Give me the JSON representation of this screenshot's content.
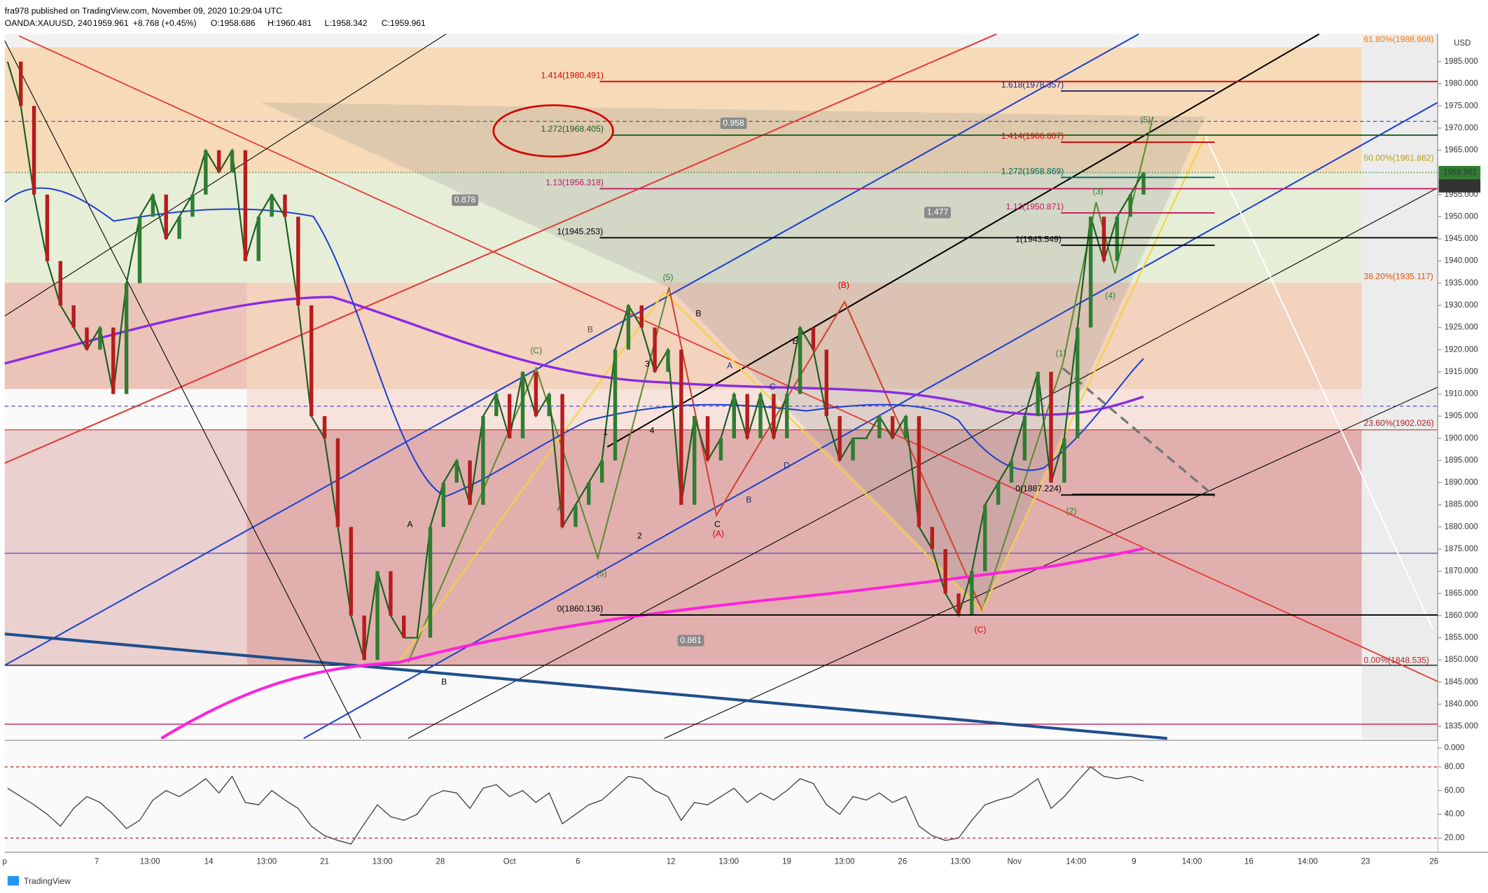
{
  "header": {
    "line1": "fra978 published on TradingView.com, November 09, 2020 10:29:04 UTC",
    "symbol": "OANDA:XAUUSD, 240",
    "last": "1959.961",
    "change": "+8.768 (+0.45%)",
    "open": "O:1958.686",
    "high": "H:1960.481",
    "low": "L:1958.342",
    "close": "C:1959.961"
  },
  "price_axis": {
    "currency": "USD",
    "ticks": [
      {
        "value": 1985,
        "label": "1985.000"
      },
      {
        "value": 1980,
        "label": "1980.000"
      },
      {
        "value": 1975,
        "label": "1975.000"
      },
      {
        "value": 1970,
        "label": "1970.000"
      },
      {
        "value": 1965,
        "label": "1965.000"
      },
      {
        "value": 1955,
        "label": "1955.000"
      },
      {
        "value": 1950,
        "label": "1950.000"
      },
      {
        "value": 1945,
        "label": "1945.000"
      },
      {
        "value": 1940,
        "label": "1940.000"
      },
      {
        "value": 1935,
        "label": "1935.000"
      },
      {
        "value": 1930,
        "label": "1930.000"
      },
      {
        "value": 1925,
        "label": "1925.000"
      },
      {
        "value": 1920,
        "label": "1920.000"
      },
      {
        "value": 1915,
        "label": "1915.000"
      },
      {
        "value": 1910,
        "label": "1910.000"
      },
      {
        "value": 1905,
        "label": "1905.000"
      },
      {
        "value": 1900,
        "label": "1900.000"
      },
      {
        "value": 1895,
        "label": "1895.000"
      },
      {
        "value": 1890,
        "label": "1890.000"
      },
      {
        "value": 1885,
        "label": "1885.000"
      },
      {
        "value": 1880,
        "label": "1880.000"
      },
      {
        "value": 1875,
        "label": "1875.000"
      },
      {
        "value": 1870,
        "label": "1870.000"
      },
      {
        "value": 1865,
        "label": "1865.000"
      },
      {
        "value": 1860,
        "label": "1860.000"
      },
      {
        "value": 1855,
        "label": "1855.000"
      },
      {
        "value": 1850,
        "label": "1850.000"
      },
      {
        "value": 1845,
        "label": "1845.000"
      },
      {
        "value": 1840,
        "label": "1840.000"
      },
      {
        "value": 1835,
        "label": "1835.000"
      }
    ],
    "price_tag": {
      "value": 1959.961,
      "label": "1959.961"
    },
    "countdown": "03:30:57"
  },
  "time_axis": [
    "p",
    "7",
    "13:00",
    "14",
    "13:00",
    "21",
    "13:00",
    "28",
    "Oct",
    "6",
    "12",
    "13:00",
    "19",
    "13:00",
    "26",
    "13:00",
    "Nov",
    "14:00",
    "9",
    "14:00",
    "16",
    "14:00",
    "23",
    "26"
  ],
  "closes": [
    1985,
    1975,
    1955,
    1940,
    1930,
    1925,
    1920,
    1925,
    1910,
    1935,
    1950,
    1955,
    1945,
    1950,
    1955,
    1965,
    1960,
    1965,
    1940,
    1950,
    1955,
    1950,
    1930,
    1905,
    1900,
    1880,
    1860,
    1850,
    1870,
    1860,
    1855,
    1855,
    1880,
    1890,
    1895,
    1885,
    1905,
    1910,
    1900,
    1915,
    1905,
    1910,
    1880,
    1885,
    1890,
    1895,
    1920,
    1930,
    1925,
    1915,
    1920,
    1885,
    1905,
    1895,
    1900,
    1910,
    1900,
    1910,
    1900,
    1910,
    1925,
    1920,
    1905,
    1895,
    1900,
    1900,
    1905,
    1900,
    1905,
    1880,
    1875,
    1865,
    1860,
    1870,
    1885,
    1890,
    1895,
    1905,
    1915,
    1890,
    1900,
    1925,
    1950,
    1940,
    1950,
    1955,
    1960
  ],
  "fib_labels": [
    {
      "text": "61.80%(1988.608)",
      "color": "#f57c00"
    },
    {
      "text": "1.414(1980.491)",
      "color": "#d50000"
    },
    {
      "text": "1.618(1978.357)",
      "color": "#1a237e"
    },
    {
      "text": "1.272(1968.405)",
      "color": "#1b5e20"
    },
    {
      "text": "1.414(1966.807)",
      "color": "#d50000"
    },
    {
      "text": "50.00%(1961.862)",
      "color": "#c0a000"
    },
    {
      "text": "1.272(1958.869)",
      "color": "#00695c"
    },
    {
      "text": "1.13(1956.318)",
      "color": "#c2185b"
    },
    {
      "text": "1.13(1950.871)",
      "color": "#c2185b"
    },
    {
      "text": "1(1945.253)",
      "color": "#000000"
    },
    {
      "text": "1(1943.549)",
      "color": "#000000"
    },
    {
      "text": "38.20%(1935.117)",
      "color": "#e65100"
    },
    {
      "text": "23.60%(1902.026)",
      "color": "#b71c1c"
    },
    {
      "text": "0(1887.224)",
      "color": "#000000"
    },
    {
      "text": "0(1860.136)",
      "color": "#000000"
    },
    {
      "text": "0.00%(1848.535)",
      "color": "#b71c1c"
    }
  ],
  "ratio_boxes": [
    "0.958",
    "0.878",
    "1.477",
    "0.861"
  ],
  "wave_labels": [
    "A",
    "B",
    "(C)",
    "B",
    "A",
    "1",
    "2",
    "(5)",
    "3",
    "4",
    "(5)",
    "B",
    "A",
    "C",
    "(A)",
    "B",
    "C",
    "D",
    "E",
    "(B)",
    "(C)",
    "(1)",
    "(2)",
    "(3)",
    "(4)",
    "(5)"
  ],
  "rsi": {
    "ticks": [
      {
        "value": 0,
        "label": "0.000"
      },
      {
        "value": 80,
        "label": "80.00"
      },
      {
        "value": 60,
        "label": "60.00"
      },
      {
        "value": 40,
        "label": "40.00"
      },
      {
        "value": 20,
        "label": "20.00"
      }
    ],
    "values": [
      62,
      55,
      48,
      40,
      30,
      45,
      55,
      50,
      40,
      28,
      35,
      52,
      60,
      55,
      62,
      70,
      58,
      72,
      50,
      48,
      60,
      52,
      45,
      30,
      22,
      18,
      15,
      32,
      48,
      38,
      35,
      40,
      55,
      60,
      58,
      45,
      62,
      65,
      55,
      60,
      50,
      58,
      32,
      40,
      48,
      52,
      62,
      72,
      70,
      60,
      55,
      35,
      50,
      48,
      55,
      62,
      50,
      58,
      52,
      60,
      70,
      66,
      48,
      40,
      55,
      52,
      58,
      50,
      55,
      30,
      22,
      18,
      20,
      35,
      48,
      52,
      55,
      62,
      70,
      45,
      55,
      68,
      80,
      72,
      70,
      72,
      68
    ]
  },
  "footer": "TradingView"
}
